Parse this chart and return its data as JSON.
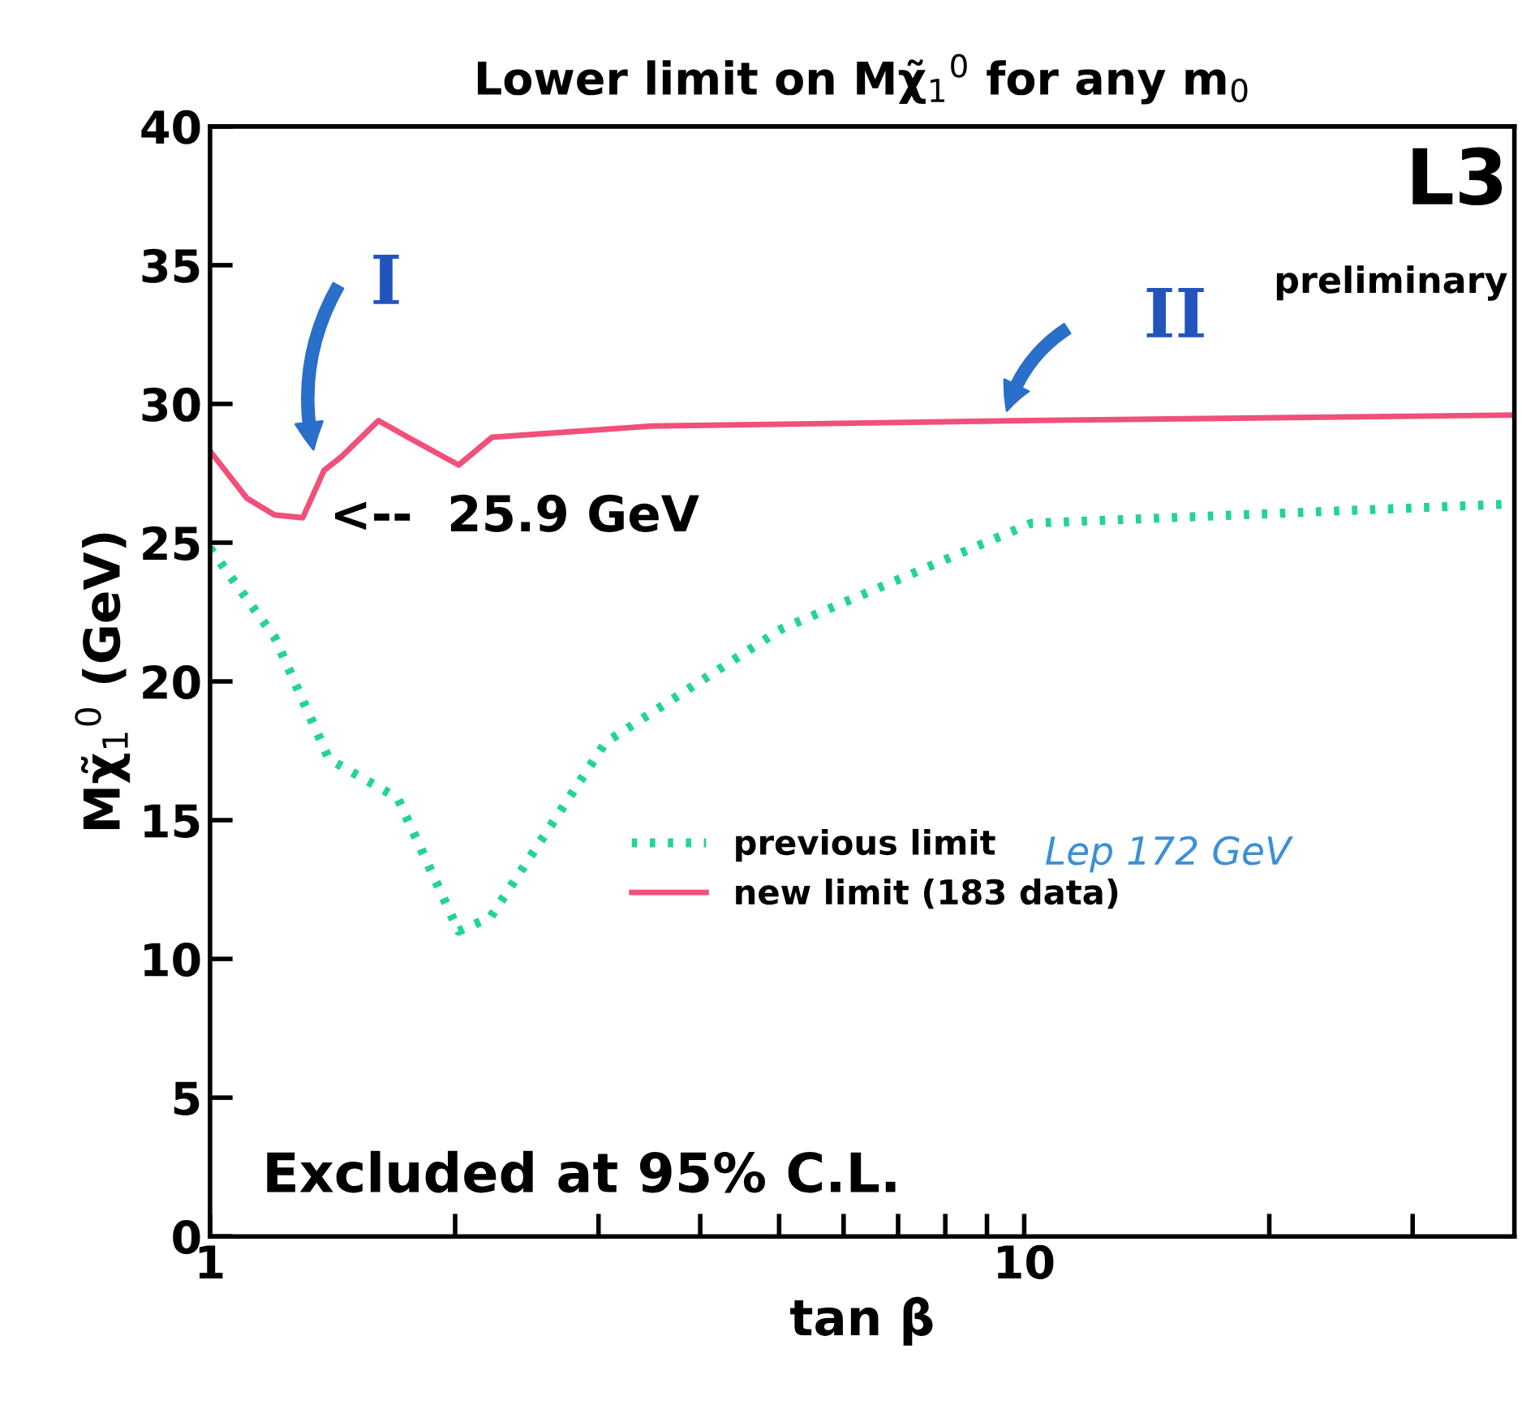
{
  "chart_data": {
    "type": "line",
    "title": "Lower limit on Mχ̃$_{1}$$^{0}$ for any m$_{0}$",
    "xlabel": "tan β",
    "ylabel": "Mχ̃$_{1}$$^{0}$ (GeV)",
    "log": "x",
    "xlim": [
      1,
      40
    ],
    "ylim": [
      0,
      40
    ],
    "xticks": [
      1,
      {
        "value": 2,
        "label": null
      },
      {
        "value": 3,
        "label": null
      },
      {
        "value": 4,
        "label": null
      },
      {
        "value": 5,
        "label": null
      },
      {
        "value": 6,
        "label": null
      },
      {
        "value": 7,
        "label": null
      },
      {
        "value": 8,
        "label": null
      },
      {
        "value": 9,
        "label": null
      },
      10,
      {
        "value": 20,
        "label": null
      },
      {
        "value": 30,
        "label": null
      }
    ],
    "yticks": [
      0,
      5,
      10,
      15,
      20,
      25,
      30,
      35,
      40
    ],
    "grid": false,
    "legend": "center right",
    "series": [
      {
        "name": "previous limit",
        "color": "#22d39a",
        "line_style": "dotted",
        "x": [
          1,
          1.2,
          1.4,
          1.7,
          2.02,
          2.21,
          3.06,
          5.04,
          10.2,
          40
        ],
        "values": [
          24.8,
          21.6,
          17.2,
          15.8,
          11.0,
          11.5,
          17.8,
          21.9,
          25.7,
          26.4
        ]
      },
      {
        "name": "new limit (183 data)",
        "color": "#f0507a",
        "line_style": "solid",
        "x": [
          1,
          1.11,
          1.2,
          1.3,
          1.38,
          1.45,
          1.61,
          1.8,
          2.02,
          2.22,
          3.48,
          10,
          40
        ],
        "values": [
          28.3,
          26.6,
          26.0,
          25.9,
          27.6,
          28.1,
          29.4,
          28.6,
          27.8,
          28.8,
          29.2,
          29.4,
          29.6
        ]
      }
    ],
    "annotations": [
      {
        "text": "<--  25.9 GeV",
        "x": 1.3,
        "y": 25.9
      },
      "L3",
      "preliminary",
      "Excluded at 95% C.L.",
      "Lep 172 GeV",
      "I",
      "II"
    ]
  }
}
